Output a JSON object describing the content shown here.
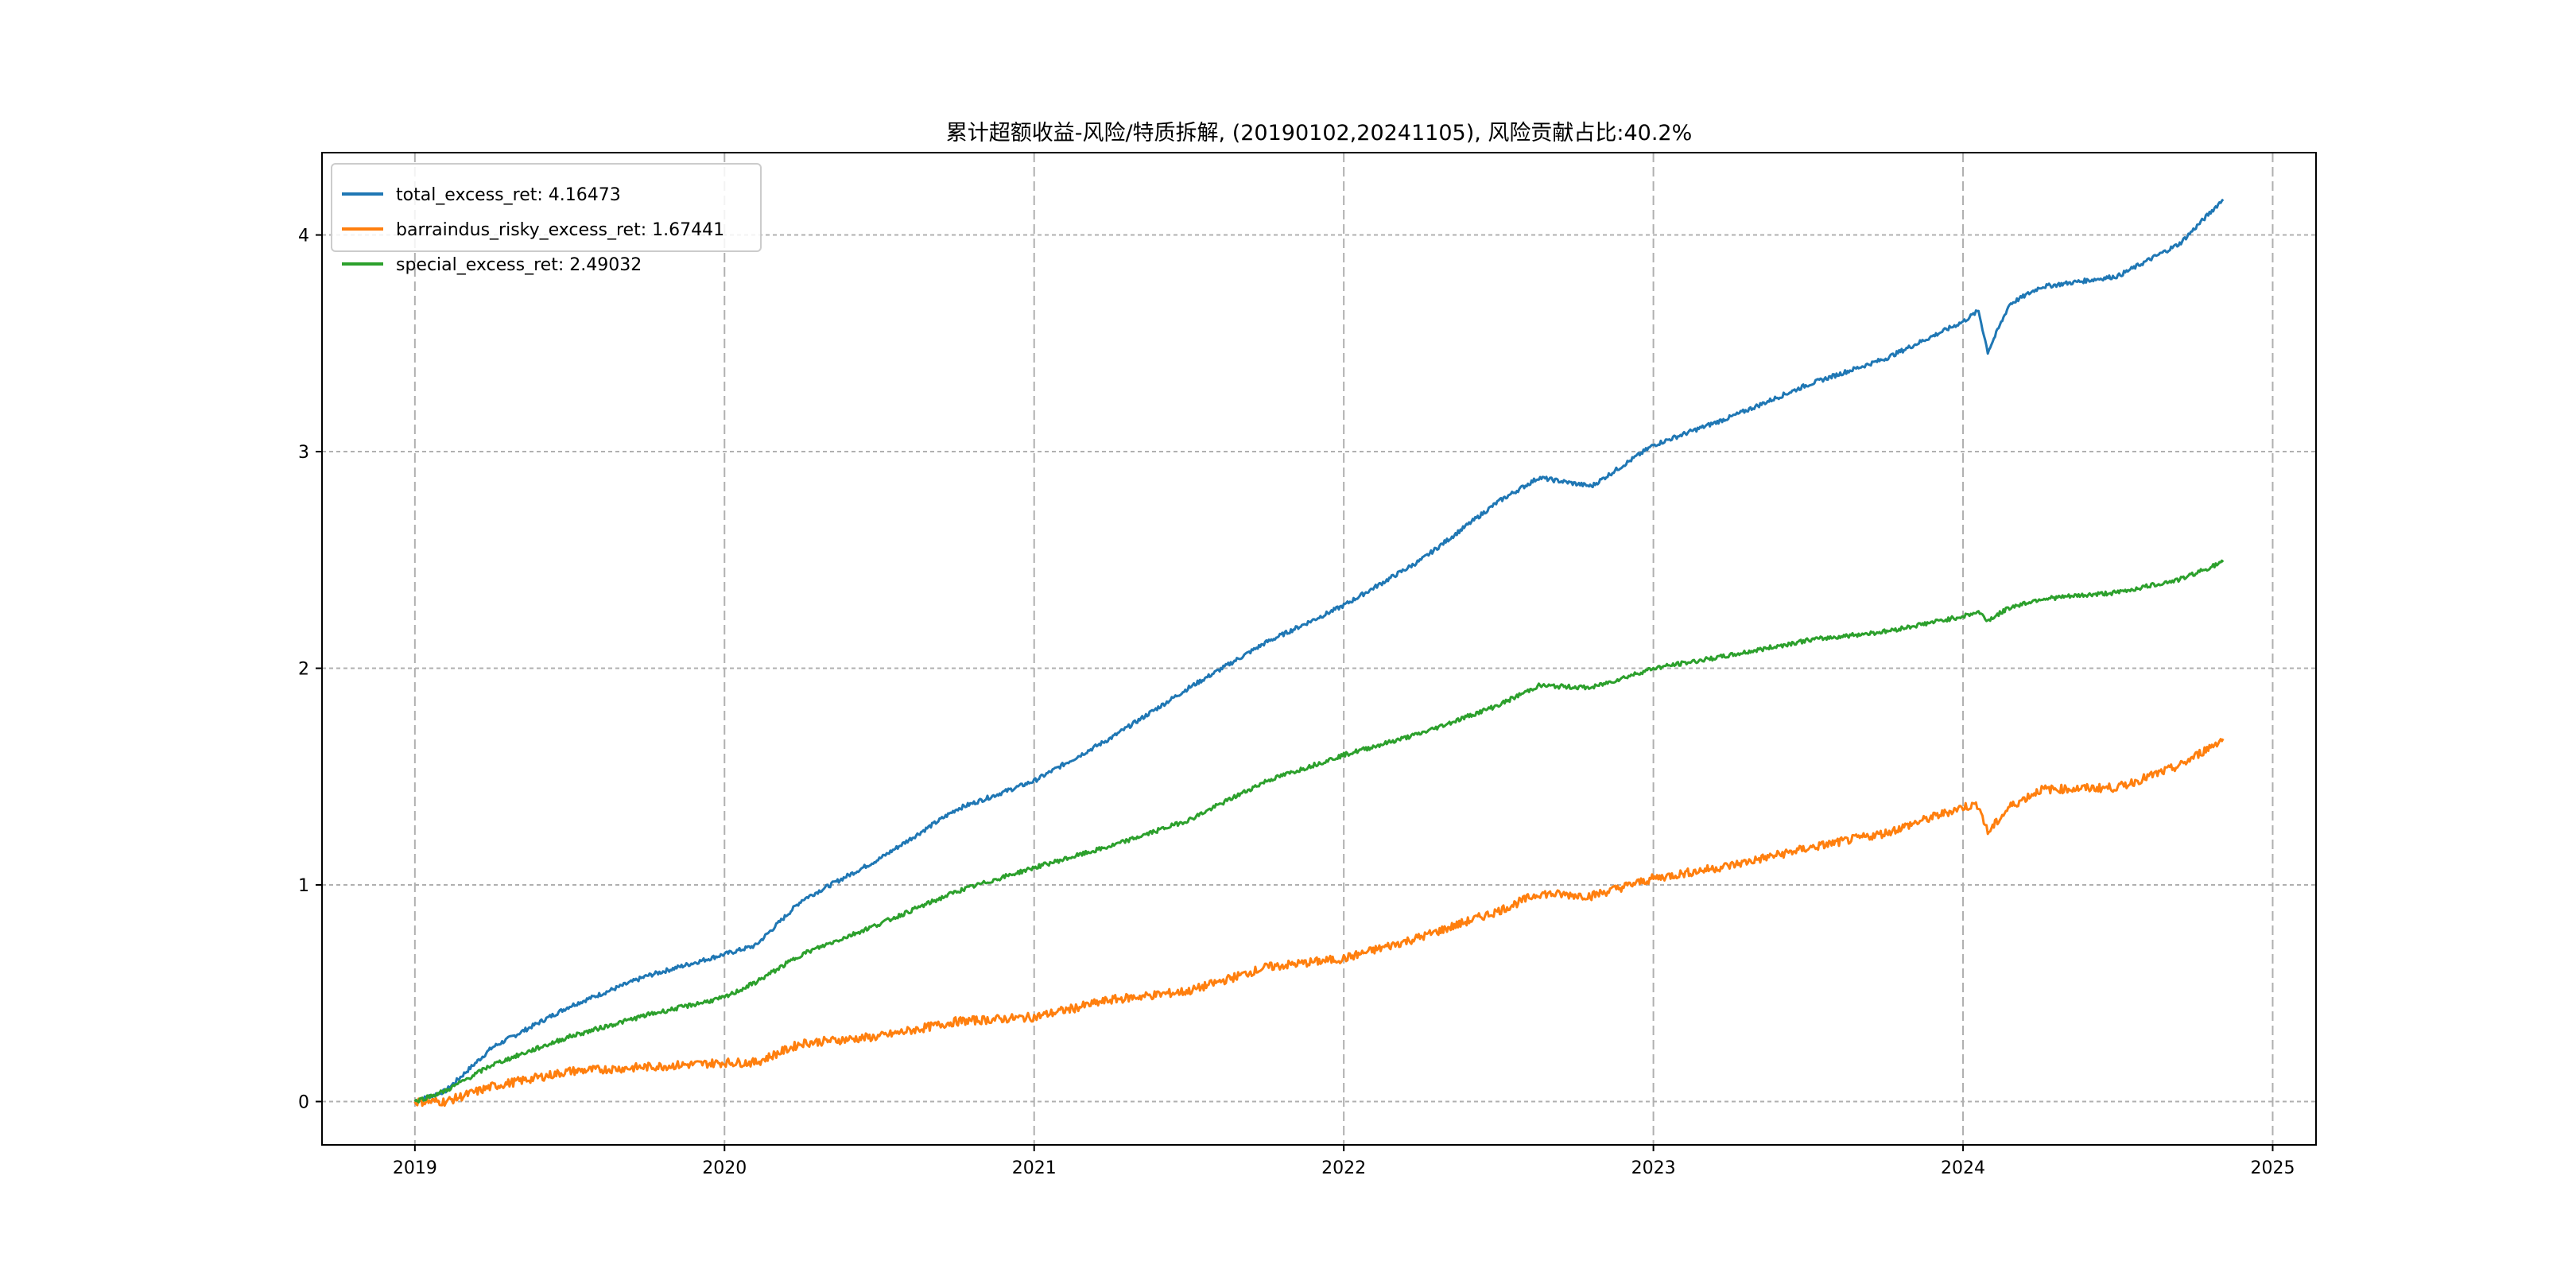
{
  "chart_data": {
    "type": "line",
    "title": "累计超额收益-风险/特质拆解, (20190102,20241105), 风险贡献占比:40.2%",
    "xlabel": "",
    "ylabel": "",
    "xlim": [
      2018.7,
      2025.14
    ],
    "ylim": [
      -0.2,
      4.38
    ],
    "x_ticks": [
      "2019",
      "2020",
      "2021",
      "2022",
      "2023",
      "2024",
      "2025"
    ],
    "x_tick_values": [
      2019,
      2020,
      2021,
      2022,
      2023,
      2024,
      2025
    ],
    "y_ticks": [
      "0",
      "1",
      "2",
      "3",
      "4"
    ],
    "y_tick_values": [
      0,
      1,
      2,
      3,
      4
    ],
    "grid": true,
    "legend_placement": "top-left",
    "x": [
      2019.0,
      2019.1,
      2019.25,
      2019.5,
      2019.75,
      2020.0,
      2020.1,
      2020.25,
      2020.5,
      2020.75,
      2021.0,
      2021.25,
      2021.5,
      2021.75,
      2022.0,
      2022.25,
      2022.5,
      2022.63,
      2022.8,
      2023.0,
      2023.25,
      2023.5,
      2023.75,
      2024.0,
      2024.05,
      2024.08,
      2024.15,
      2024.25,
      2024.5,
      2024.7,
      2024.84
    ],
    "series": [
      {
        "name": "total_excess_ret",
        "legend": "total_excess_ret: 4.16473",
        "color": "#1f77b4",
        "values": [
          0,
          0.05,
          0.25,
          0.44,
          0.58,
          0.68,
          0.72,
          0.93,
          1.12,
          1.35,
          1.48,
          1.68,
          1.91,
          2.12,
          2.29,
          2.5,
          2.77,
          2.88,
          2.84,
          3.03,
          3.16,
          3.31,
          3.43,
          3.6,
          3.65,
          3.46,
          3.68,
          3.76,
          3.81,
          3.96,
          4.16473
        ]
      },
      {
        "name": "barraindus_risky_excess_ret",
        "legend": "barraindus_risky_excess_ret: 1.67441",
        "color": "#ff7f0e",
        "values": [
          0,
          0.0,
          0.07,
          0.14,
          0.16,
          0.18,
          0.18,
          0.27,
          0.3,
          0.37,
          0.39,
          0.47,
          0.51,
          0.62,
          0.66,
          0.76,
          0.88,
          0.96,
          0.95,
          1.03,
          1.09,
          1.17,
          1.24,
          1.36,
          1.37,
          1.24,
          1.36,
          1.44,
          1.45,
          1.55,
          1.67441
        ]
      },
      {
        "name": "special_excess_ret",
        "legend": "special_excess_ret: 2.49032",
        "color": "#2ca02c",
        "values": [
          0,
          0.05,
          0.17,
          0.3,
          0.4,
          0.48,
          0.55,
          0.68,
          0.82,
          0.97,
          1.08,
          1.18,
          1.3,
          1.48,
          1.6,
          1.7,
          1.83,
          1.92,
          1.91,
          2.0,
          2.06,
          2.13,
          2.17,
          2.24,
          2.26,
          2.22,
          2.28,
          2.32,
          2.35,
          2.41,
          2.49032
        ]
      }
    ]
  }
}
